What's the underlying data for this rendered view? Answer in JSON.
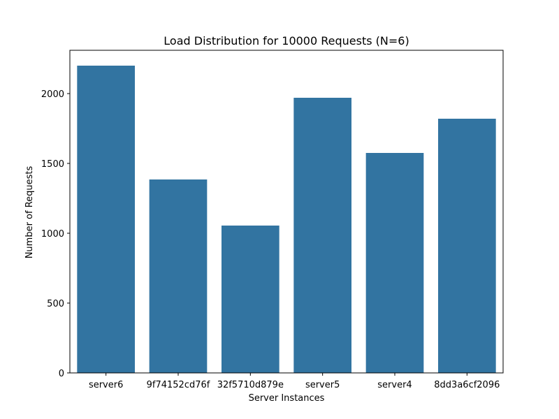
{
  "chart_data": {
    "type": "bar",
    "title": "Load Distribution for 10000 Requests (N=6)",
    "xlabel": "Server Instances",
    "ylabel": "Number of Requests",
    "categories": [
      "server6",
      "9f74152cd76f",
      "32f5710d879e",
      "server5",
      "server4",
      "8dd3a6cf2096"
    ],
    "values": [
      2200,
      1385,
      1055,
      1970,
      1575,
      1820
    ],
    "ylim": [
      0,
      2310
    ],
    "yticks": [
      0,
      500,
      1000,
      1500,
      2000
    ],
    "grid": false,
    "bar_color": "#3274a1"
  }
}
